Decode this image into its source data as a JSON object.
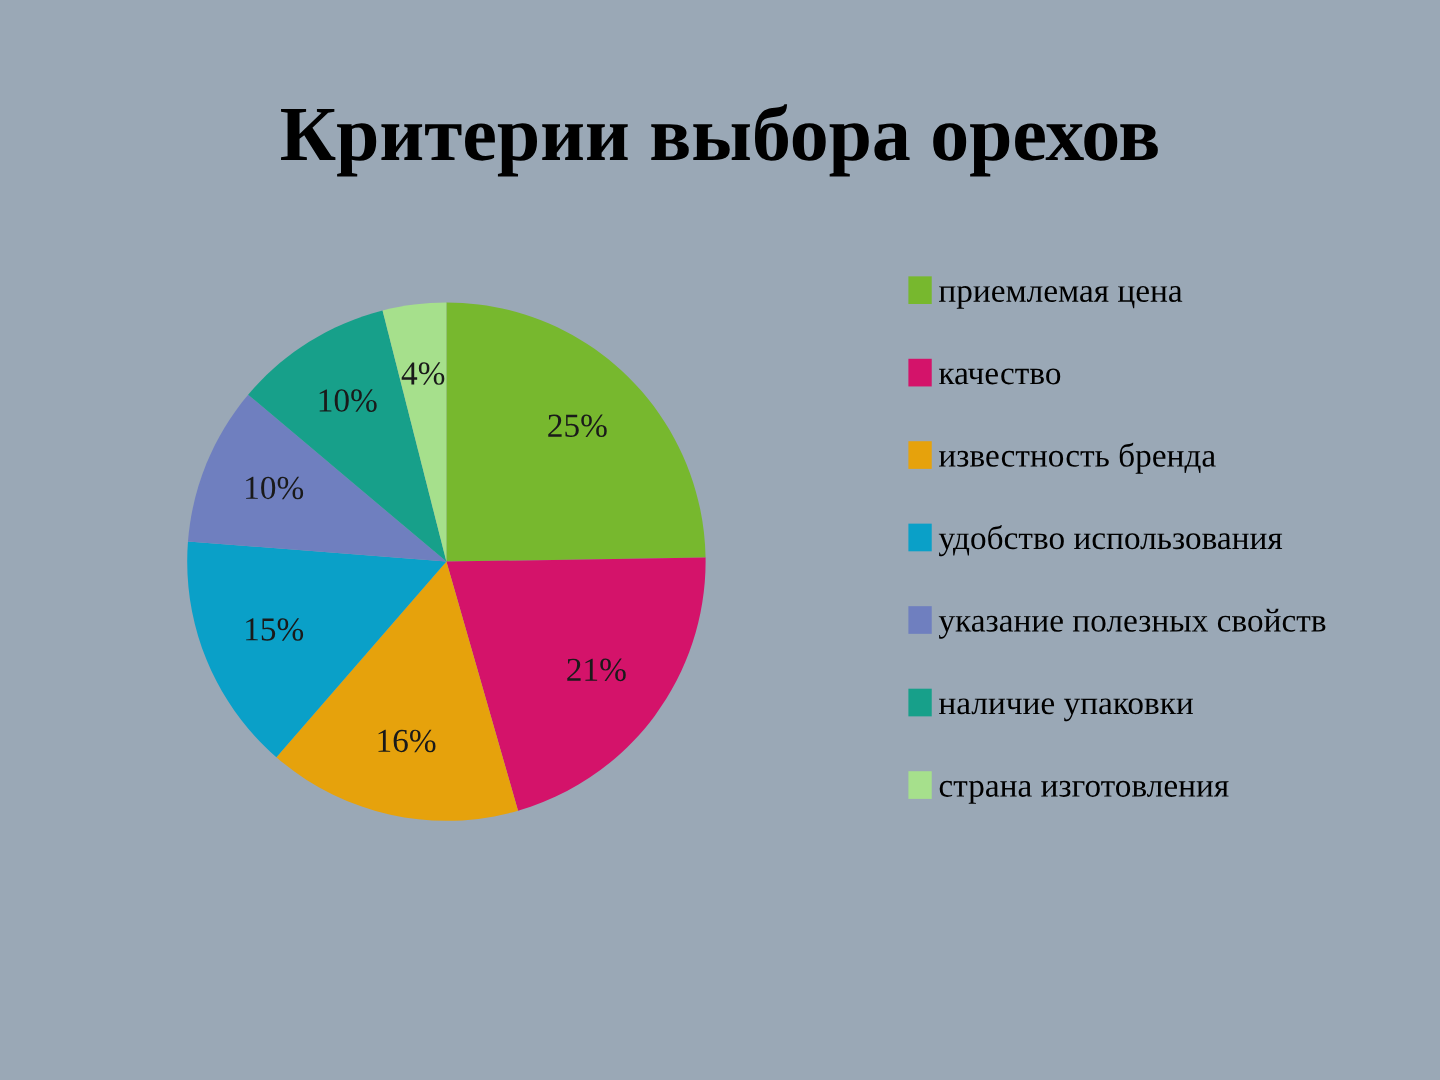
{
  "chart_data": {
    "type": "pie",
    "title": "Критерии выбора орехов",
    "categories": [
      "приемлемая цена",
      "качество",
      "известность бренда",
      "удобство использования",
      "указание полезных свойств",
      "наличие упаковки",
      "страна изготовления"
    ],
    "values": [
      25,
      21,
      16,
      15,
      10,
      10,
      4
    ],
    "colors": [
      "#77b82e",
      "#d4136a",
      "#e6a20c",
      "#0aa0c8",
      "#6f7fbf",
      "#17a08a",
      "#a6e08c"
    ],
    "value_labels": [
      "25%",
      "21%",
      "16%",
      "15%",
      "10%",
      "10%",
      "4%"
    ],
    "legend": "right"
  }
}
